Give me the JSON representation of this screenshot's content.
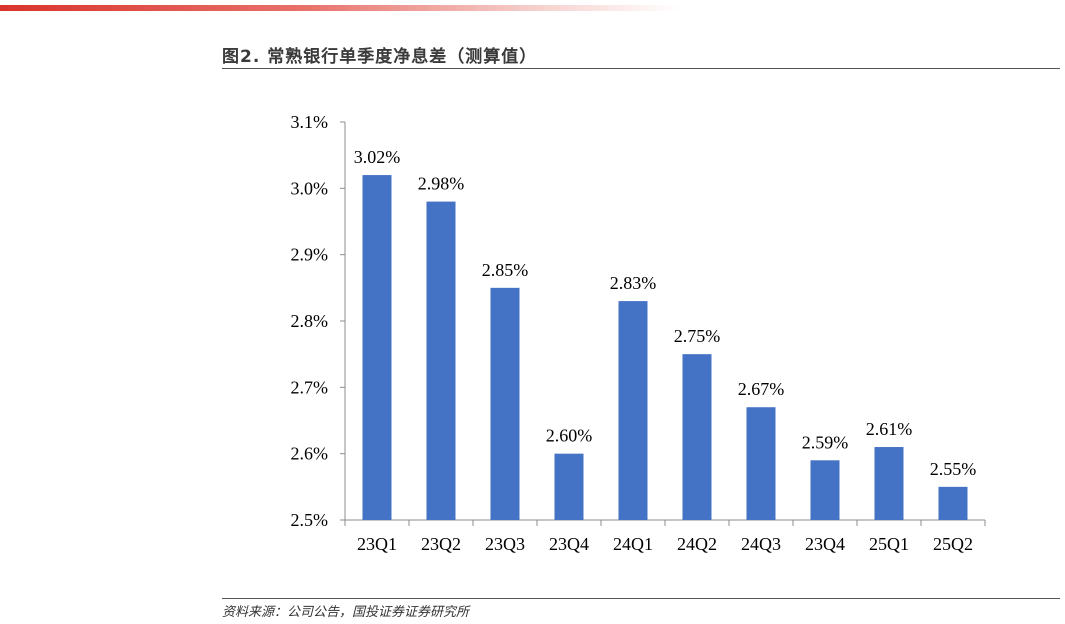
{
  "figure": {
    "title": "图2. 常熟银行单季度净息差（测算值）",
    "source": "资料来源：公司公告，国投证券证券研究所"
  },
  "colors": {
    "bar": "#4472c4",
    "accent": "#d9342b"
  },
  "chart_data": {
    "type": "bar",
    "categories": [
      "23Q1",
      "23Q2",
      "23Q3",
      "23Q4",
      "24Q1",
      "24Q2",
      "24Q3",
      "23Q4",
      "25Q1",
      "25Q2"
    ],
    "values": [
      3.02,
      2.98,
      2.85,
      2.6,
      2.83,
      2.75,
      2.67,
      2.59,
      2.61,
      2.55
    ],
    "value_labels": [
      "3.02%",
      "2.98%",
      "2.85%",
      "2.60%",
      "2.83%",
      "2.75%",
      "2.67%",
      "2.59%",
      "2.61%",
      "2.55%"
    ],
    "yticks": [
      2.5,
      2.6,
      2.7,
      2.8,
      2.9,
      3.0,
      3.1
    ],
    "ytick_labels": [
      "2.5%",
      "2.6%",
      "2.7%",
      "2.8%",
      "2.9%",
      "3.0%",
      "3.1%"
    ],
    "ylim": [
      2.5,
      3.1
    ],
    "grid": false,
    "legend": "none",
    "title": "",
    "xlabel": "",
    "ylabel": ""
  }
}
